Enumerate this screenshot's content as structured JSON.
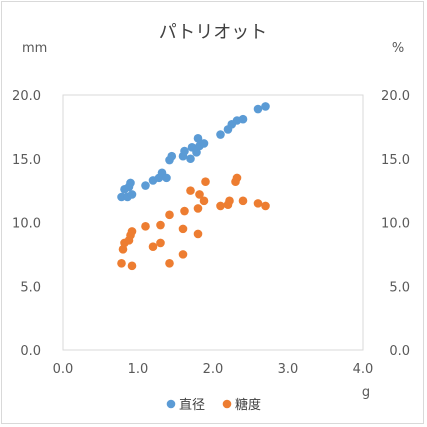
{
  "chart_data": {
    "type": "scatter",
    "title": "パトリオット",
    "xlabel": "g",
    "ylabel_left": "mm",
    "ylabel_right": "%",
    "xlim": [
      0,
      4
    ],
    "ylim": [
      0,
      20
    ],
    "x_ticks": [
      "0.0",
      "1.0",
      "2.0",
      "3.0",
      "4.0"
    ],
    "y_ticks": [
      "0.0",
      "5.0",
      "10.0",
      "15.0",
      "20.0"
    ],
    "grid": false,
    "legend_position": "bottom",
    "series": [
      {
        "name": "直径",
        "color": "#5b9bd5",
        "points": [
          [
            0.78,
            12.0
          ],
          [
            0.82,
            12.6
          ],
          [
            0.86,
            12.0
          ],
          [
            0.88,
            12.8
          ],
          [
            0.9,
            13.1
          ],
          [
            0.92,
            12.2
          ],
          [
            1.1,
            12.9
          ],
          [
            1.2,
            13.3
          ],
          [
            1.28,
            13.5
          ],
          [
            1.32,
            13.9
          ],
          [
            1.38,
            13.5
          ],
          [
            1.42,
            14.9
          ],
          [
            1.45,
            15.2
          ],
          [
            1.6,
            15.2
          ],
          [
            1.62,
            15.6
          ],
          [
            1.7,
            15.0
          ],
          [
            1.72,
            15.9
          ],
          [
            1.78,
            15.5
          ],
          [
            1.8,
            16.6
          ],
          [
            1.82,
            16.0
          ],
          [
            1.88,
            16.2
          ],
          [
            2.1,
            16.9
          ],
          [
            2.2,
            17.3
          ],
          [
            2.25,
            17.7
          ],
          [
            2.32,
            18.0
          ],
          [
            2.4,
            18.1
          ],
          [
            2.6,
            18.9
          ],
          [
            2.7,
            19.1
          ]
        ]
      },
      {
        "name": "糖度",
        "color": "#ed7d31",
        "points": [
          [
            0.78,
            6.8
          ],
          [
            0.8,
            7.9
          ],
          [
            0.82,
            8.4
          ],
          [
            0.88,
            8.6
          ],
          [
            0.9,
            9.0
          ],
          [
            0.92,
            6.6
          ],
          [
            0.92,
            9.3
          ],
          [
            1.1,
            9.7
          ],
          [
            1.2,
            8.1
          ],
          [
            1.3,
            8.4
          ],
          [
            1.3,
            9.8
          ],
          [
            1.42,
            6.8
          ],
          [
            1.42,
            10.6
          ],
          [
            1.6,
            7.5
          ],
          [
            1.6,
            9.5
          ],
          [
            1.62,
            10.9
          ],
          [
            1.7,
            12.5
          ],
          [
            1.8,
            9.1
          ],
          [
            1.8,
            11.1
          ],
          [
            1.82,
            12.2
          ],
          [
            1.88,
            11.7
          ],
          [
            1.9,
            13.2
          ],
          [
            2.1,
            11.3
          ],
          [
            2.2,
            11.4
          ],
          [
            2.22,
            11.7
          ],
          [
            2.3,
            13.2
          ],
          [
            2.32,
            13.5
          ],
          [
            2.4,
            11.7
          ],
          [
            2.6,
            11.5
          ],
          [
            2.7,
            11.3
          ]
        ]
      }
    ]
  }
}
